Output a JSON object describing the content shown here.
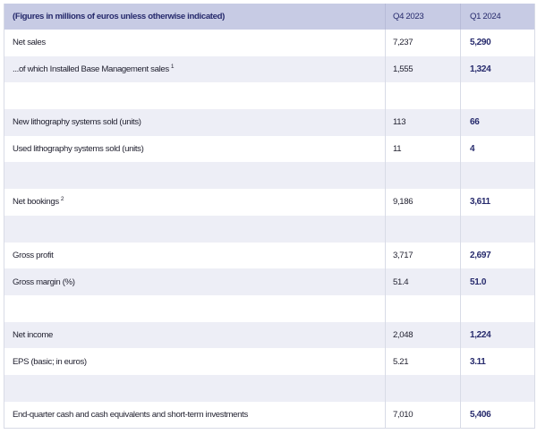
{
  "header": {
    "label": "(Figures in millions of euros unless otherwise indicated)",
    "q4": "Q4 2023",
    "q1": "Q1 2024"
  },
  "rows": [
    {
      "label": "Net sales",
      "sup": "",
      "q4": "7,237",
      "q1": "5,290",
      "shade": "white"
    },
    {
      "label": "...of which Installed Base Management sales",
      "sup": "1",
      "q4": "1,555",
      "q1": "1,324",
      "shade": "shade"
    },
    {
      "label": "",
      "sup": "",
      "q4": "",
      "q1": "",
      "shade": "white"
    },
    {
      "label": "New lithography systems sold (units)",
      "sup": "",
      "q4": "113",
      "q1": "66",
      "shade": "shade"
    },
    {
      "label": "Used lithography systems sold (units)",
      "sup": "",
      "q4": "11",
      "q1": "4",
      "shade": "white"
    },
    {
      "label": "",
      "sup": "",
      "q4": "",
      "q1": "",
      "shade": "shade"
    },
    {
      "label": "Net bookings",
      "sup": "2",
      "q4": "9,186",
      "q1": "3,611",
      "shade": "white"
    },
    {
      "label": "",
      "sup": "",
      "q4": "",
      "q1": "",
      "shade": "shade"
    },
    {
      "label": "Gross profit",
      "sup": "",
      "q4": "3,717",
      "q1": "2,697",
      "shade": "white"
    },
    {
      "label": "Gross margin (%)",
      "sup": "",
      "q4": "51.4",
      "q1": "51.0",
      "shade": "shade"
    },
    {
      "label": "",
      "sup": "",
      "q4": "",
      "q1": "",
      "shade": "white"
    },
    {
      "label": "Net income",
      "sup": "",
      "q4": "2,048",
      "q1": "1,224",
      "shade": "shade"
    },
    {
      "label": "EPS (basic; in euros)",
      "sup": "",
      "q4": "5.21",
      "q1": "3.11",
      "shade": "white"
    },
    {
      "label": "",
      "sup": "",
      "q4": "",
      "q1": "",
      "shade": "shade"
    },
    {
      "label": "End-quarter cash and cash equivalents and short-term investments",
      "sup": "",
      "q4": "7,010",
      "q1": "5,406",
      "shade": "white"
    }
  ]
}
